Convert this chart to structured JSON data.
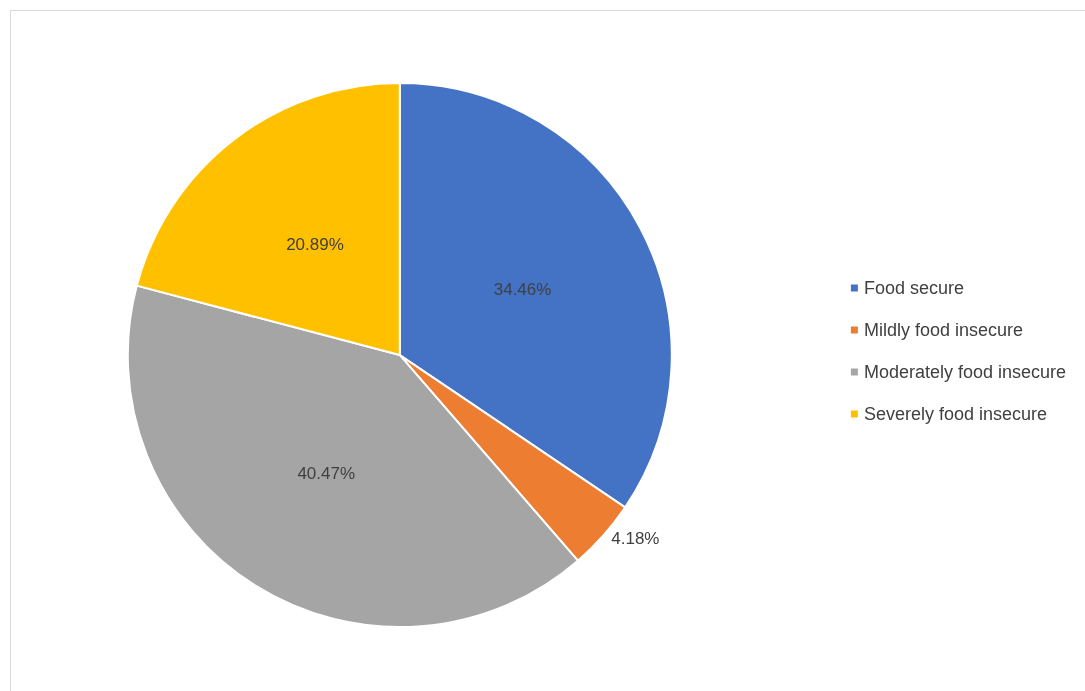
{
  "chart_data": {
    "type": "pie",
    "categories": [
      "Food secure",
      "Mildly food insecure",
      "Moderately food insecure",
      "Severely food insecure"
    ],
    "values": [
      34.46,
      4.18,
      40.47,
      20.89
    ],
    "colors": [
      "#4472c4",
      "#ed7d31",
      "#a5a5a5",
      "#ffc000"
    ],
    "value_labels": [
      "34.46%",
      "4.18%",
      "40.47%",
      "20.89%"
    ],
    "legend": "right"
  }
}
